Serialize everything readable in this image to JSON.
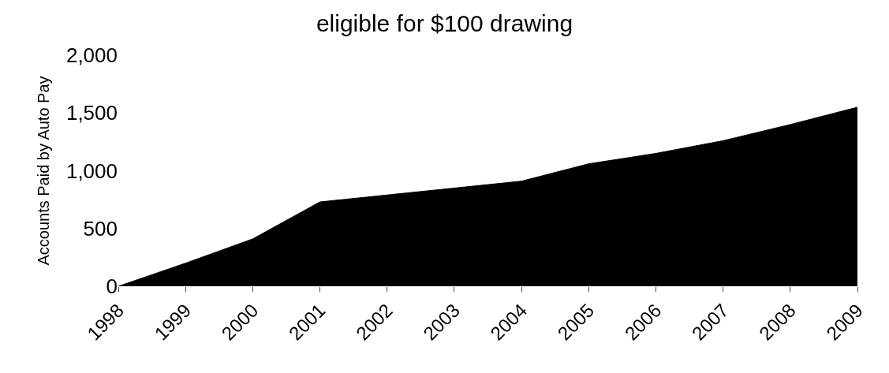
{
  "chart_data": {
    "type": "area",
    "title": "eligible for $100 drawing",
    "ylabel": "Accounts Paid by Auto Pay",
    "categories": [
      "1998",
      "1999",
      "2000",
      "2001",
      "2002",
      "2003",
      "2004",
      "2005",
      "2006",
      "2007",
      "2008",
      "2009"
    ],
    "values": [
      0,
      200,
      410,
      730,
      790,
      850,
      910,
      1060,
      1150,
      1260,
      1400,
      1550
    ],
    "color": "#000000",
    "ylim": [
      0,
      2000
    ],
    "yticks": [
      {
        "value": 0,
        "label": "0"
      },
      {
        "value": 500,
        "label": "500"
      },
      {
        "value": 1000,
        "label": "1,000"
      },
      {
        "value": 1500,
        "label": "1,500"
      },
      {
        "value": 2000,
        "label": "2,000"
      }
    ],
    "tick_labels": "xy"
  }
}
